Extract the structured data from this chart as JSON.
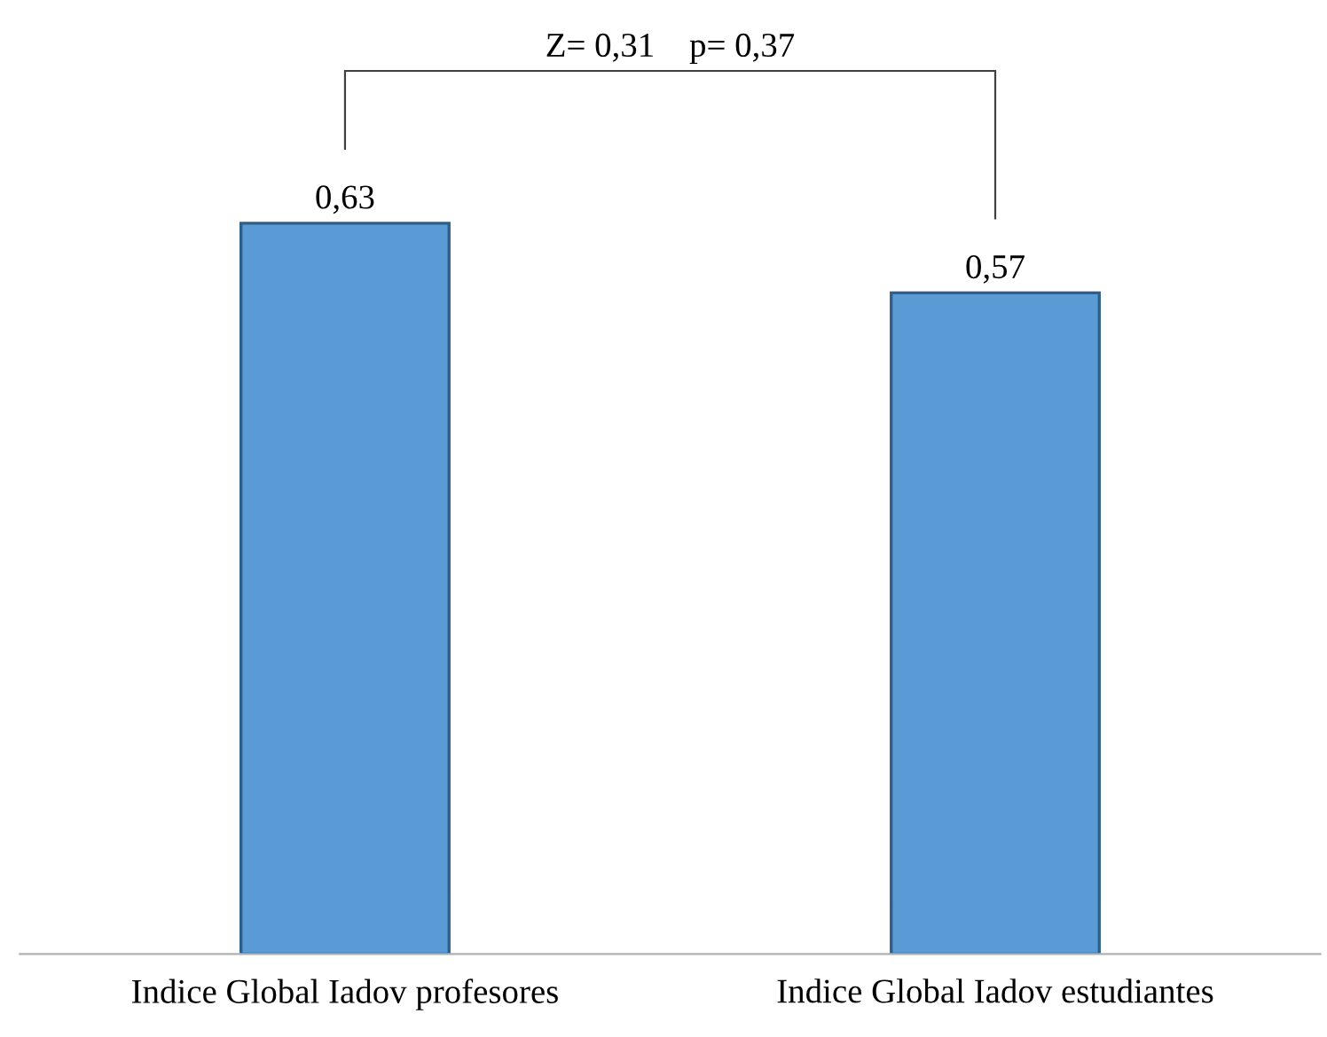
{
  "chart_data": {
    "type": "bar",
    "categories": [
      "Indice Global Iadov profesores",
      "Indice Global Iadov estudiantes"
    ],
    "values": [
      0.63,
      0.57
    ],
    "value_labels": [
      "0,63",
      "0,57"
    ],
    "color": "#5b9bd5",
    "tick_labels": "x",
    "grid": false,
    "legend": false,
    "annotations": [
      "Z= 0,31    p= 0,37"
    ]
  }
}
